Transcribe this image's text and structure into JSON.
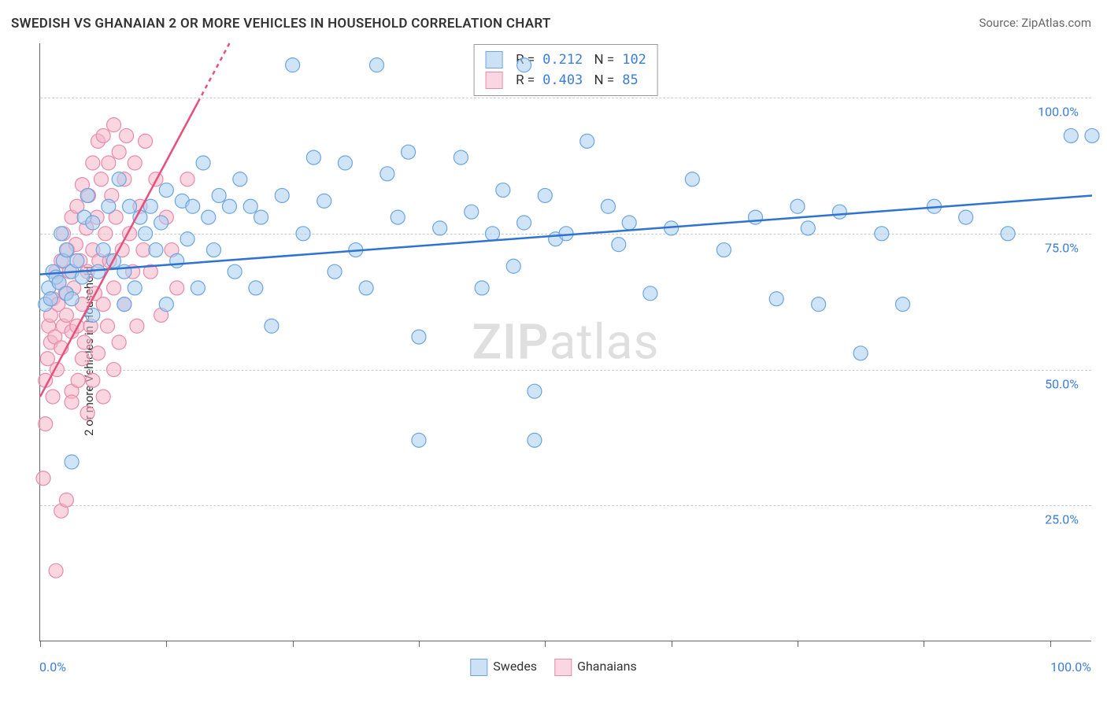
{
  "title": "SWEDISH VS GHANAIAN 2 OR MORE VEHICLES IN HOUSEHOLD CORRELATION CHART",
  "source_label": "Source: ZipAtlas.com",
  "ylabel": "2 or more Vehicles in Household",
  "watermark_bold": "ZIP",
  "watermark_light": "atlas",
  "chart": {
    "type": "scatter",
    "xlim": [
      0,
      100
    ],
    "ylim": [
      0,
      110
    ],
    "xtick_positions": [
      0,
      12,
      24,
      36,
      48,
      60,
      72,
      84,
      96
    ],
    "x_axis_labels": {
      "min": "0.0%",
      "max": "100.0%"
    },
    "y_gridlines": [
      25,
      50,
      75,
      100
    ],
    "y_labels": {
      "25": "25.0%",
      "50": "50.0%",
      "75": "75.0%",
      "100": "100.0%"
    },
    "background_color": "#ffffff",
    "grid_color": "#cccccc",
    "axis_color": "#666666",
    "marker_radius": 9,
    "series": [
      {
        "name": "Swedes",
        "label": "Swedes",
        "fill": "#a9cdf0",
        "stroke": "#6ba5e0",
        "fill_opacity": 0.55,
        "trend": {
          "x1": 0,
          "y1": 67.5,
          "x2": 100,
          "y2": 82,
          "color": "#2f73d0",
          "width": 2.5
        },
        "stats": {
          "R": "0.212",
          "N": "102"
        },
        "points": [
          [
            0.5,
            62
          ],
          [
            0.8,
            65
          ],
          [
            1,
            63
          ],
          [
            1.2,
            68
          ],
          [
            1.5,
            67
          ],
          [
            1.8,
            66
          ],
          [
            2,
            75
          ],
          [
            2.2,
            70
          ],
          [
            2.5,
            72
          ],
          [
            2.5,
            64
          ],
          [
            3,
            63
          ],
          [
            3,
            33
          ],
          [
            3,
            68
          ],
          [
            3.5,
            70
          ],
          [
            4,
            67
          ],
          [
            4.2,
            78
          ],
          [
            4.5,
            82
          ],
          [
            5,
            60
          ],
          [
            5,
            77
          ],
          [
            5.5,
            68
          ],
          [
            6,
            72
          ],
          [
            6.5,
            80
          ],
          [
            7,
            70
          ],
          [
            7.5,
            85
          ],
          [
            8,
            68
          ],
          [
            8,
            62
          ],
          [
            8.5,
            80
          ],
          [
            9,
            65
          ],
          [
            9.5,
            78
          ],
          [
            10,
            75
          ],
          [
            10.5,
            80
          ],
          [
            11,
            72
          ],
          [
            11.5,
            77
          ],
          [
            12,
            83
          ],
          [
            12,
            62
          ],
          [
            13,
            70
          ],
          [
            13.5,
            81
          ],
          [
            14,
            74
          ],
          [
            14.5,
            80
          ],
          [
            15,
            65
          ],
          [
            15.5,
            88
          ],
          [
            16,
            78
          ],
          [
            16.5,
            72
          ],
          [
            17,
            82
          ],
          [
            18,
            80
          ],
          [
            18.5,
            68
          ],
          [
            19,
            85
          ],
          [
            20,
            80
          ],
          [
            20.5,
            65
          ],
          [
            21,
            78
          ],
          [
            22,
            58
          ],
          [
            23,
            82
          ],
          [
            24,
            106
          ],
          [
            25,
            75
          ],
          [
            26,
            89
          ],
          [
            27,
            81
          ],
          [
            28,
            68
          ],
          [
            29,
            88
          ],
          [
            30,
            72
          ],
          [
            31,
            65
          ],
          [
            32,
            106
          ],
          [
            33,
            86
          ],
          [
            34,
            78
          ],
          [
            35,
            90
          ],
          [
            36,
            56
          ],
          [
            36,
            37
          ],
          [
            38,
            76
          ],
          [
            40,
            89
          ],
          [
            41,
            79
          ],
          [
            42,
            65
          ],
          [
            43,
            75
          ],
          [
            44,
            83
          ],
          [
            45,
            69
          ],
          [
            46,
            77
          ],
          [
            46,
            106
          ],
          [
            47,
            46
          ],
          [
            47,
            37
          ],
          [
            48,
            82
          ],
          [
            49,
            74
          ],
          [
            50,
            75
          ],
          [
            52,
            92
          ],
          [
            54,
            80
          ],
          [
            55,
            73
          ],
          [
            56,
            77
          ],
          [
            58,
            64
          ],
          [
            60,
            76
          ],
          [
            62,
            85
          ],
          [
            65,
            72
          ],
          [
            68,
            78
          ],
          [
            70,
            63
          ],
          [
            72,
            80
          ],
          [
            73,
            76
          ],
          [
            74,
            62
          ],
          [
            76,
            79
          ],
          [
            78,
            53
          ],
          [
            80,
            75
          ],
          [
            82,
            62
          ],
          [
            85,
            80
          ],
          [
            88,
            78
          ],
          [
            92,
            75
          ],
          [
            98,
            93
          ],
          [
            100,
            93
          ]
        ]
      },
      {
        "name": "Ghanaians",
        "label": "Ghanaians",
        "fill": "#f4b4c6",
        "stroke": "#e98aab",
        "fill_opacity": 0.55,
        "trend": {
          "x1": 0,
          "y1": 45,
          "x2": 18,
          "y2": 110,
          "color": "#e84f7a",
          "width": 2.5
        },
        "trend_dash_after_x": 15,
        "stats": {
          "R": "0.403",
          "N": "85"
        },
        "points": [
          [
            0.3,
            30
          ],
          [
            0.5,
            40
          ],
          [
            0.5,
            48
          ],
          [
            0.7,
            52
          ],
          [
            0.8,
            58
          ],
          [
            1,
            55
          ],
          [
            1,
            60
          ],
          [
            1.2,
            45
          ],
          [
            1.2,
            63
          ],
          [
            1.4,
            56
          ],
          [
            1.5,
            68
          ],
          [
            1.5,
            13
          ],
          [
            1.6,
            50
          ],
          [
            1.7,
            62
          ],
          [
            1.8,
            66
          ],
          [
            2,
            54
          ],
          [
            2,
            70
          ],
          [
            2,
            24
          ],
          [
            2.2,
            58
          ],
          [
            2.2,
            75
          ],
          [
            2.4,
            64
          ],
          [
            2.5,
            60
          ],
          [
            2.5,
            26
          ],
          [
            2.6,
            72
          ],
          [
            2.8,
            68
          ],
          [
            3,
            57
          ],
          [
            3,
            78
          ],
          [
            3,
            46
          ],
          [
            3.2,
            65
          ],
          [
            3.4,
            73
          ],
          [
            3.5,
            58
          ],
          [
            3.5,
            80
          ],
          [
            3.6,
            48
          ],
          [
            3.8,
            70
          ],
          [
            4,
            62
          ],
          [
            4,
            84
          ],
          [
            4.2,
            55
          ],
          [
            4.4,
            76
          ],
          [
            4.5,
            68
          ],
          [
            4.5,
            42
          ],
          [
            4.6,
            82
          ],
          [
            4.8,
            58
          ],
          [
            5,
            72
          ],
          [
            5,
            88
          ],
          [
            5.2,
            64
          ],
          [
            5.4,
            78
          ],
          [
            5.5,
            53
          ],
          [
            5.5,
            92
          ],
          [
            5.6,
            70
          ],
          [
            5.8,
            85
          ],
          [
            6,
            62
          ],
          [
            6,
            93
          ],
          [
            6.2,
            75
          ],
          [
            6.4,
            58
          ],
          [
            6.5,
            88
          ],
          [
            6.6,
            70
          ],
          [
            6.8,
            82
          ],
          [
            7,
            65
          ],
          [
            7,
            95
          ],
          [
            7.2,
            78
          ],
          [
            7.5,
            55
          ],
          [
            7.5,
            90
          ],
          [
            7.8,
            72
          ],
          [
            8,
            85
          ],
          [
            8,
            62
          ],
          [
            8.2,
            93
          ],
          [
            8.5,
            75
          ],
          [
            8.8,
            68
          ],
          [
            9,
            88
          ],
          [
            9.2,
            58
          ],
          [
            9.5,
            80
          ],
          [
            9.8,
            72
          ],
          [
            10,
            92
          ],
          [
            10.5,
            68
          ],
          [
            11,
            85
          ],
          [
            11.5,
            60
          ],
          [
            12,
            78
          ],
          [
            12.5,
            72
          ],
          [
            13,
            65
          ],
          [
            14,
            85
          ],
          [
            6,
            45
          ],
          [
            7,
            50
          ],
          [
            5,
            48
          ],
          [
            4,
            52
          ],
          [
            3,
            44
          ]
        ]
      }
    ]
  },
  "legend": {
    "swatch_border_blue": "#6ba5e0",
    "swatch_fill_blue": "#cde1f6",
    "swatch_border_pink": "#e98aab",
    "swatch_fill_pink": "#fad6e2"
  }
}
